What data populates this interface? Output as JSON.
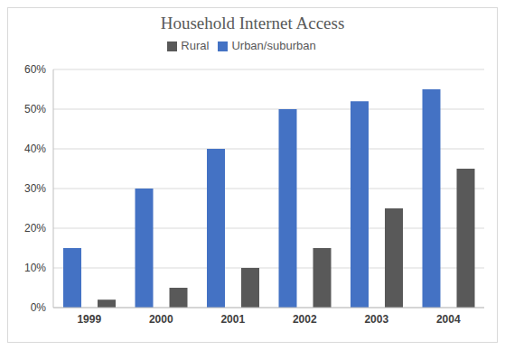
{
  "chart_data": {
    "type": "bar",
    "title": "Household Internet Access",
    "categories": [
      "1999",
      "2000",
      "2001",
      "2002",
      "2003",
      "2004"
    ],
    "series": [
      {
        "name": "Urban/suburban",
        "color": "#4472C4",
        "values": [
          15,
          30,
          40,
          50,
          52,
          55
        ]
      },
      {
        "name": "Rural",
        "color": "#595959",
        "values": [
          2,
          5,
          10,
          15,
          25,
          35
        ]
      }
    ],
    "ylim": [
      0,
      60
    ],
    "yticks": [
      {
        "value": 0,
        "label": "0%"
      },
      {
        "value": 10,
        "label": "10%"
      },
      {
        "value": 20,
        "label": "20%"
      },
      {
        "value": 30,
        "label": "30%"
      },
      {
        "value": 40,
        "label": "40%"
      },
      {
        "value": 50,
        "label": "50%"
      },
      {
        "value": 60,
        "label": "60%"
      }
    ],
    "grid": true,
    "legend": "top"
  }
}
